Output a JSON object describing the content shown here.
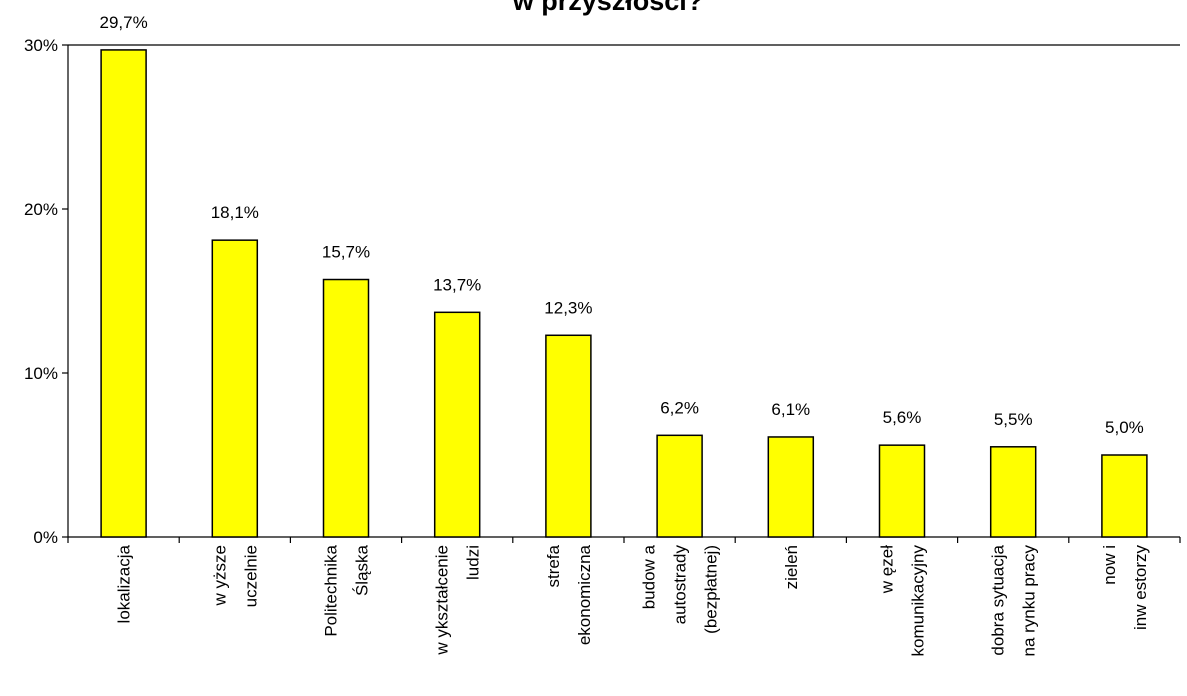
{
  "chart_data": {
    "type": "bar",
    "title": "w przyszłości?",
    "categories": [
      [
        "lokalizacja"
      ],
      [
        "w yższe",
        "uczelnie"
      ],
      [
        "Politechnika",
        "Śląska"
      ],
      [
        "w ykształcenie",
        "ludzi"
      ],
      [
        "strefa",
        "ekonomiczna"
      ],
      [
        "budow a",
        "autostrady",
        "(bezpłatnej)"
      ],
      [
        "zieleń"
      ],
      [
        "w ęzeł",
        "komunikacyjny"
      ],
      [
        "dobra sytuacja",
        "na rynku pracy"
      ],
      [
        "now i",
        "inw estorzy"
      ]
    ],
    "values": [
      29.7,
      18.1,
      15.7,
      13.7,
      12.3,
      6.2,
      6.1,
      5.6,
      5.5,
      5.0
    ],
    "data_labels": [
      "29,7%",
      "18,1%",
      "15,7%",
      "13,7%",
      "12,3%",
      "6,2%",
      "6,1%",
      "5,6%",
      "5,5%",
      "5,0%"
    ],
    "yticks": [
      0,
      10,
      20,
      30
    ],
    "ytick_labels": [
      "0%",
      "10%",
      "20%",
      "30%"
    ],
    "ylim": [
      0,
      30
    ],
    "bar_color": "#FFFF00",
    "grid": false,
    "legend": "none"
  }
}
